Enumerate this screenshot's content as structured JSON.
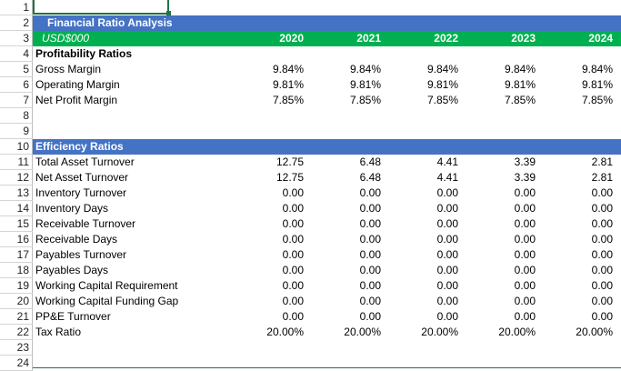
{
  "rows": {
    "r1": "1",
    "r2": "2",
    "r3": "3",
    "r4": "4",
    "r5": "5",
    "r6": "6",
    "r7": "7",
    "r8": "8",
    "r9": "9",
    "r10": "10",
    "r11": "11",
    "r12": "12",
    "r13": "13",
    "r14": "14",
    "r15": "15",
    "r16": "16",
    "r17": "17",
    "r18": "18",
    "r19": "19",
    "r20": "20",
    "r21": "21",
    "r22": "22",
    "r23": "23",
    "r24": "24"
  },
  "title": "Financial Ratio Analysis",
  "currency": "USD$000",
  "years": [
    "2020",
    "2021",
    "2022",
    "2023",
    "2024"
  ],
  "sections": {
    "profitability": "Profitability Ratios",
    "efficiency": "Efficiency Ratios"
  },
  "profitability": [
    {
      "label": "Gross Margin",
      "values": [
        "9.84%",
        "9.84%",
        "9.84%",
        "9.84%",
        "9.84%"
      ]
    },
    {
      "label": "Operating Margin",
      "values": [
        "9.81%",
        "9.81%",
        "9.81%",
        "9.81%",
        "9.81%"
      ]
    },
    {
      "label": "Net Profit Margin",
      "values": [
        "7.85%",
        "7.85%",
        "7.85%",
        "7.85%",
        "7.85%"
      ]
    }
  ],
  "efficiency": [
    {
      "label": "Total Asset Turnover",
      "values": [
        "12.75",
        "6.48",
        "4.41",
        "3.39",
        "2.81"
      ]
    },
    {
      "label": "Net Asset Turnover",
      "values": [
        "12.75",
        "6.48",
        "4.41",
        "3.39",
        "2.81"
      ]
    },
    {
      "label": "Inventory Turnover",
      "values": [
        "0.00",
        "0.00",
        "0.00",
        "0.00",
        "0.00"
      ]
    },
    {
      "label": "Inventory Days",
      "values": [
        "0.00",
        "0.00",
        "0.00",
        "0.00",
        "0.00"
      ]
    },
    {
      "label": "Receivable Turnover",
      "values": [
        "0.00",
        "0.00",
        "0.00",
        "0.00",
        "0.00"
      ]
    },
    {
      "label": "Receivable Days",
      "values": [
        "0.00",
        "0.00",
        "0.00",
        "0.00",
        "0.00"
      ]
    },
    {
      "label": "Payables Turnover",
      "values": [
        "0.00",
        "0.00",
        "0.00",
        "0.00",
        "0.00"
      ]
    },
    {
      "label": "Payables Days",
      "values": [
        "0.00",
        "0.00",
        "0.00",
        "0.00",
        "0.00"
      ]
    },
    {
      "label": "Working Capital Requirement",
      "values": [
        "0.00",
        "0.00",
        "0.00",
        "0.00",
        "0.00"
      ]
    },
    {
      "label": "Working Capital Funding Gap",
      "values": [
        "0.00",
        "0.00",
        "0.00",
        "0.00",
        "0.00"
      ]
    },
    {
      "label": "PP&E Turnover",
      "values": [
        "0.00",
        "0.00",
        "0.00",
        "0.00",
        "0.00"
      ]
    },
    {
      "label": "Tax Ratio",
      "values": [
        "20.00%",
        "20.00%",
        "20.00%",
        "20.00%",
        "20.00%"
      ]
    }
  ],
  "colors": {
    "title_bg": "#4472c4",
    "sub_bg": "#00b050",
    "selection": "#217346"
  }
}
